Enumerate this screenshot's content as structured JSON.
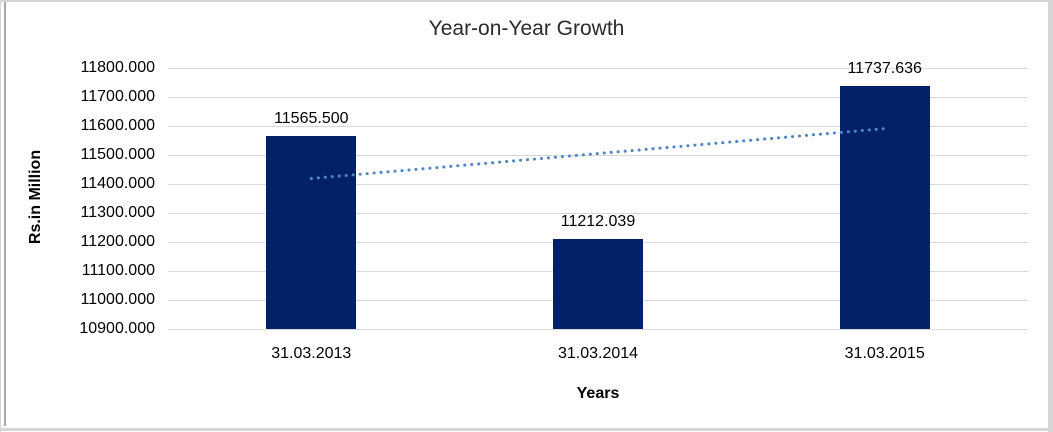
{
  "chart_data": {
    "type": "bar",
    "title": "Year-on-Year Growth",
    "categories": [
      "31.03.2013",
      "31.03.2014",
      "31.03.2015"
    ],
    "values": [
      11565.5,
      11212.039,
      11737.636
    ],
    "data_labels": [
      "11565.500",
      "11212.039",
      "11737.636"
    ],
    "xlabel": "Years",
    "ylabel": "Rs.in Million",
    "ylim": [
      10900,
      11800
    ],
    "ytick_step": 100,
    "ytick_decimals": 3,
    "grid": true,
    "legend": "none",
    "trendline": {
      "type": "linear",
      "style": "dotted",
      "color": "#4f86c6"
    },
    "colors": {
      "bar": "#032169",
      "gridline": "#d9d9d9",
      "title_text": "#2b2b2b",
      "label_text": "#000000",
      "frame_border": "#d5d5d5"
    }
  }
}
